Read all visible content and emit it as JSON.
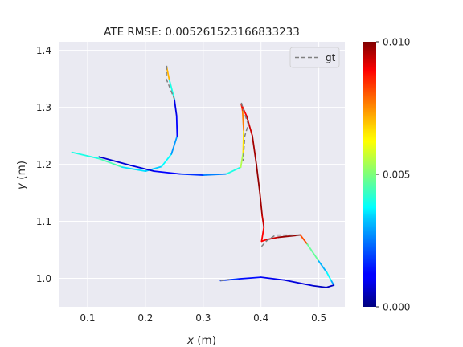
{
  "chart_data": {
    "type": "line",
    "title": "ATE RMSE: 0.005261523166833233",
    "xlabel_var": "x",
    "xlabel_unit": " (m)",
    "ylabel_var": "y",
    "ylabel_unit": " (m)",
    "xlim": [
      0.05,
      0.545
    ],
    "ylim": [
      0.95,
      1.415
    ],
    "xticks": [
      0.1,
      0.2,
      0.3,
      0.4,
      0.5
    ],
    "xtick_labels": [
      "0.1",
      "0.2",
      "0.3",
      "0.4",
      "0.5"
    ],
    "yticks": [
      1.0,
      1.1,
      1.2,
      1.3,
      1.4
    ],
    "ytick_labels": [
      "1.0",
      "1.1",
      "1.2",
      "1.3",
      "1.4"
    ],
    "grid": true,
    "legend": {
      "position": "top-right",
      "entries": [
        {
          "label": "gt",
          "style": "dashed",
          "color": "#808080"
        }
      ]
    },
    "colorbar": {
      "colormap": "jet",
      "range": [
        0.0,
        0.01
      ],
      "ticks": [
        0.0,
        0.005,
        0.01
      ],
      "tick_labels": [
        "0.000",
        "0.005",
        "0.010"
      ]
    },
    "series": [
      {
        "role": "gt",
        "style": "dashed",
        "color": "#808080",
        "segments": [
          [
            [
              0.237,
              1.373
            ],
            [
              0.236,
              1.35
            ],
            [
              0.25,
              1.315
            ]
          ],
          [
            [
              0.366,
              1.308
            ],
            [
              0.37,
              1.294
            ],
            [
              0.378,
              1.27
            ],
            [
              0.372,
              1.25
            ],
            [
              0.369,
              1.205
            ]
          ],
          [
            [
              0.401,
              1.056
            ],
            [
              0.41,
              1.066
            ],
            [
              0.425,
              1.076
            ],
            [
              0.47,
              1.076
            ]
          ],
          [
            [
              0.33,
              0.996
            ],
            [
              0.345,
              0.998
            ]
          ]
        ]
      },
      {
        "role": "estimate",
        "style": "solid",
        "colored_by": "error",
        "points": [
          [
            0.073,
            1.221,
            0.003
          ],
          [
            0.12,
            1.21,
            0.005
          ],
          [
            0.16,
            1.195,
            0.004
          ],
          [
            0.2,
            1.188,
            0.003
          ],
          [
            0.228,
            1.196,
            0.0035
          ],
          [
            0.245,
            1.218,
            0.004
          ],
          [
            0.255,
            1.25,
            0.0015
          ],
          [
            0.254,
            1.285,
            0.001
          ],
          [
            0.25,
            1.315,
            0.001
          ],
          [
            0.241,
            1.35,
            0.007
          ],
          [
            0.237,
            1.37,
            0.007
          ]
        ]
      },
      {
        "role": "estimate",
        "style": "solid",
        "colored_by": "error",
        "points": [
          [
            0.12,
            1.213,
            0.0008
          ],
          [
            0.175,
            1.198,
            0.0008
          ],
          [
            0.215,
            1.188,
            0.001
          ],
          [
            0.26,
            1.183,
            0.0015
          ],
          [
            0.3,
            1.181,
            0.002
          ],
          [
            0.34,
            1.183,
            0.003
          ],
          [
            0.365,
            1.195,
            0.005
          ],
          [
            0.369,
            1.22,
            0.006
          ],
          [
            0.37,
            1.26,
            0.007
          ],
          [
            0.368,
            1.295,
            0.008
          ],
          [
            0.366,
            1.305,
            0.0085
          ],
          [
            0.375,
            1.285,
            0.009
          ],
          [
            0.385,
            1.25,
            0.0095
          ],
          [
            0.392,
            1.2,
            0.0098
          ],
          [
            0.398,
            1.15,
            0.0098
          ],
          [
            0.402,
            1.11,
            0.0095
          ],
          [
            0.405,
            1.09,
            0.009
          ],
          [
            0.401,
            1.065,
            0.0085
          ],
          [
            0.41,
            1.068,
            0.009
          ],
          [
            0.43,
            1.072,
            0.0095
          ],
          [
            0.468,
            1.076,
            0.01
          ],
          [
            0.48,
            1.06,
            0.006
          ],
          [
            0.5,
            1.03,
            0.0035
          ],
          [
            0.514,
            1.01,
            0.0025
          ],
          [
            0.522,
            0.995,
            0.005
          ],
          [
            0.526,
            0.988,
            0.0008
          ],
          [
            0.513,
            0.984,
            0.0005
          ],
          [
            0.49,
            0.987,
            0.0008
          ],
          [
            0.44,
            0.997,
            0.001
          ],
          [
            0.4,
            1.002,
            0.0012
          ],
          [
            0.36,
            0.999,
            0.0015
          ],
          [
            0.33,
            0.996,
            0.002
          ]
        ]
      }
    ]
  }
}
